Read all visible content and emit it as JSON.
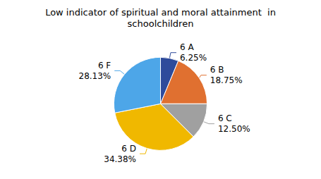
{
  "chart_data": {
    "type": "pie",
    "title": "Low indicator of spiritual and moral attainment  in\nschoolchildren",
    "categories": [
      "6 A",
      "6 B",
      "6 C",
      "6 D",
      "6 F"
    ],
    "values": [
      6.25,
      18.75,
      12.5,
      34.38,
      28.13
    ],
    "value_labels": [
      "6.25%",
      "18.75%",
      "12.50%",
      "34.38%",
      "28.13%"
    ],
    "colors": [
      "#2E4B9B",
      "#E07030",
      "#A0A0A0",
      "#F0B800",
      "#4DA6E8"
    ],
    "data_labels": true
  }
}
